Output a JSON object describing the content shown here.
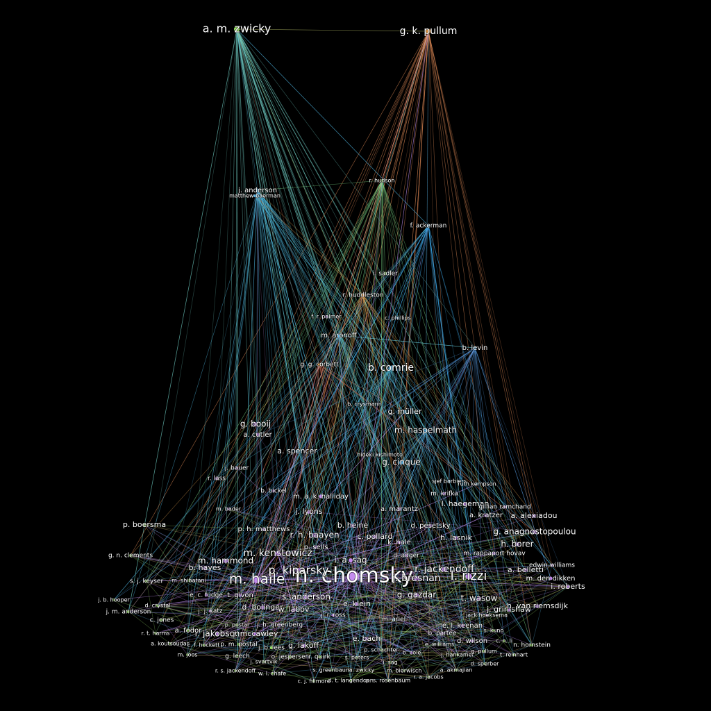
{
  "nodes": [
    "a. m. zwicky",
    "g. k. pullum",
    "n. chomsky",
    "m. halle",
    "p. kiparsky",
    "l. rizzi",
    "j. bresnan",
    "b. comrie",
    "g. booij",
    "m. haspelmath",
    "g. cinque",
    "j. anderson",
    "matthew baerman",
    "r. hudson",
    "f. ackerman",
    "i. sadler",
    "r. huddleston",
    "f. r. palmer",
    "c. phillips",
    "m. aronoff",
    "b. levin",
    "g. g. corbett",
    "b. crysmann",
    "g. müller",
    "a. cutler",
    "a. spencer",
    "hideki kishimoto",
    "j. bauer",
    "r. lass",
    "sjef barbiers",
    "ruth kempson",
    "m. a. k. halliday",
    "b. bickel",
    "m. krifka",
    "a. marantz",
    "r. jackendoff",
    "l. haegeman",
    "gillian ramchand",
    "a. kratzer",
    "a. alexiadou",
    "p. boersma",
    "h. lasnik",
    "g. anagnostopoulou",
    "r. h. baayen",
    "c. pollard",
    "m. kenstowicz",
    "b. hayes",
    "m. hammond",
    "i. a. sag",
    "d. adger",
    "h. borer",
    "m. rappaport hovav",
    "a. belletti",
    "edwin williams",
    "m. den dikken",
    "i. roberts",
    "g. gazdar",
    "t. wasow",
    "j. grimshaw",
    "h. van riemsdijk",
    "s. anderson",
    "d. bolinger",
    "w. labov",
    "e. klein",
    "j. r. ross",
    "m. ariel",
    "jack hoeksema",
    "e. l. keenan",
    "b. partee",
    "r. jakobson",
    "j. mccawley",
    "e. bach",
    "d. wilson",
    "g. lakoff",
    "a. fodor",
    "c. jones",
    "g. n. clements",
    "s. j. keyser",
    "m. shibatani",
    "j. b. hooper",
    "j. m. anderson",
    "r. t. harms",
    "a. koutsoudas",
    "c. f. hockett",
    "p. m. postal",
    "j. b. lees",
    "g. leech",
    "o. jespersen",
    "r. quirk",
    "s. peters",
    "i. sag",
    "p. schachter",
    "b. cole",
    "e. williams",
    "j. hankamer",
    "g. pullum",
    "t. reinhart",
    "n. hornstein",
    "c. n. li",
    "s. kuno",
    "m. joos",
    "j. svartvik",
    "d. sperber",
    "r. s. jackendoff",
    "j. h. greenberg",
    "p. postal",
    "e. c. fudge",
    "t. givon",
    "d. crystal",
    "j. j. katz",
    "a. akmajian",
    "m. bierwisch",
    "r. a. jacobs",
    "c. j. fillmore",
    "d. t. langendoen",
    "p. s. rosenbaum",
    "s. greenbaum",
    "a. zwicky",
    "w. l. chafe",
    "j. lyons",
    "b. heine",
    "k. hale",
    "d. pesetsky",
    "m. bader",
    "p. h. matthews",
    "p. sells"
  ]
}
